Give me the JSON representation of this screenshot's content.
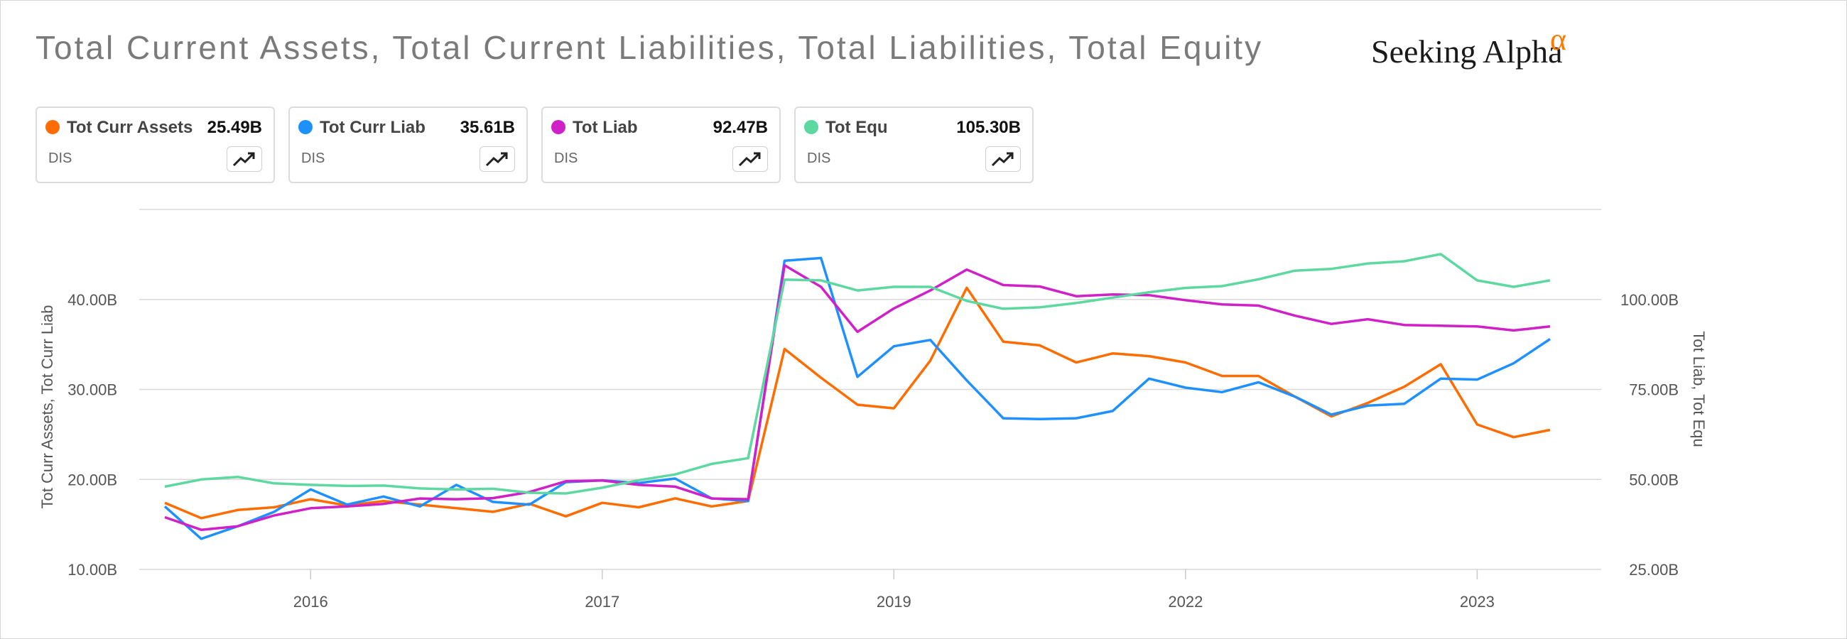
{
  "title": "Total Current Assets, Total Current Liabilities, Total Liabilities, Total Equity",
  "brand": {
    "name": "Seeking Alpha",
    "symbol": "α",
    "color": "#ff7a00"
  },
  "cards": [
    {
      "label": "Tot Curr Assets",
      "value": "25.49B",
      "ticker": "DIS",
      "color": "#ff6c00",
      "icon": "trend-up-icon"
    },
    {
      "label": "Tot Curr Liab",
      "value": "35.61B",
      "ticker": "DIS",
      "color": "#1e90ff",
      "icon": "trend-up-icon"
    },
    {
      "label": "Tot Liab",
      "value": "92.47B",
      "ticker": "DIS",
      "color": "#d020c8",
      "icon": "trend-up-icon"
    },
    {
      "label": "Tot Equ",
      "value": "105.30B",
      "ticker": "DIS",
      "color": "#5dd8a0",
      "icon": "trend-up-icon"
    }
  ],
  "chart_data": {
    "type": "line",
    "grid": true,
    "legend": "top cards",
    "x_tick_labels": [
      "2016",
      "2017",
      "2019",
      "2022",
      "2023"
    ],
    "left_axis": {
      "title": "Tot Curr Assets, Tot Curr Liab",
      "range": [
        10,
        50
      ],
      "ticks": [
        10,
        20,
        30,
        40
      ],
      "tick_labels": [
        "10.00B",
        "20.00B",
        "30.00B",
        "40.00B"
      ]
    },
    "right_axis": {
      "title": "Tot Liab, Tot Equ",
      "range": [
        25,
        125
      ],
      "ticks": [
        25,
        50,
        75,
        100
      ],
      "tick_labels": [
        "25.00B",
        "50.00B",
        "75.00B",
        "100.00B"
      ]
    },
    "series": [
      {
        "name": "Tot Curr Assets",
        "axis": "left",
        "color": "#ff6c00",
        "values": [
          17.4,
          15.7,
          16.6,
          16.9,
          17.8,
          17.1,
          17.6,
          17.2,
          16.8,
          16.4,
          17.3,
          15.9,
          17.4,
          16.9,
          17.9,
          17.0,
          17.6,
          34.5,
          31.3,
          28.3,
          27.9,
          33.2,
          41.3,
          35.3,
          34.9,
          33.0,
          34.0,
          33.7,
          33.0,
          31.5,
          31.5,
          29.2,
          27.0,
          28.5,
          30.3,
          32.8,
          26.1,
          24.7,
          25.5
        ]
      },
      {
        "name": "Tot Curr Liab",
        "axis": "left",
        "color": "#1e90ff",
        "values": [
          17.0,
          13.4,
          14.8,
          16.4,
          18.9,
          17.2,
          18.1,
          17.0,
          19.4,
          17.5,
          17.2,
          19.7,
          19.9,
          19.6,
          20.1,
          17.9,
          17.6,
          44.3,
          44.6,
          31.4,
          34.8,
          35.5,
          31.0,
          26.8,
          26.7,
          26.8,
          27.6,
          31.2,
          30.2,
          29.7,
          30.8,
          29.2,
          27.2,
          28.2,
          28.4,
          31.2,
          31.1,
          32.9,
          35.6
        ]
      },
      {
        "name": "Tot Liab",
        "axis": "right",
        "color": "#d020c8",
        "values": [
          39.5,
          36.0,
          37.0,
          40.0,
          42.0,
          42.5,
          43.2,
          44.7,
          44.5,
          44.8,
          46.5,
          49.5,
          49.7,
          48.5,
          48.0,
          44.7,
          44.5,
          109.5,
          103.5,
          91.0,
          97.5,
          102.5,
          108.3,
          104.0,
          103.6,
          100.9,
          101.4,
          101.2,
          99.8,
          98.6,
          98.3,
          95.5,
          93.2,
          94.5,
          92.9,
          92.7,
          92.5,
          91.4,
          92.5
        ]
      },
      {
        "name": "Tot Equ",
        "axis": "right",
        "color": "#5dd8a0",
        "values": [
          48.0,
          50.0,
          50.7,
          48.9,
          48.5,
          48.2,
          48.3,
          47.5,
          47.2,
          47.4,
          46.3,
          46.1,
          47.7,
          49.8,
          51.4,
          54.3,
          55.9,
          105.5,
          105.3,
          102.5,
          103.5,
          103.5,
          99.6,
          97.4,
          97.8,
          99.0,
          100.5,
          102.0,
          103.2,
          103.7,
          105.6,
          108.0,
          108.5,
          110.0,
          110.6,
          112.6,
          105.3,
          103.5,
          105.3
        ]
      }
    ]
  }
}
